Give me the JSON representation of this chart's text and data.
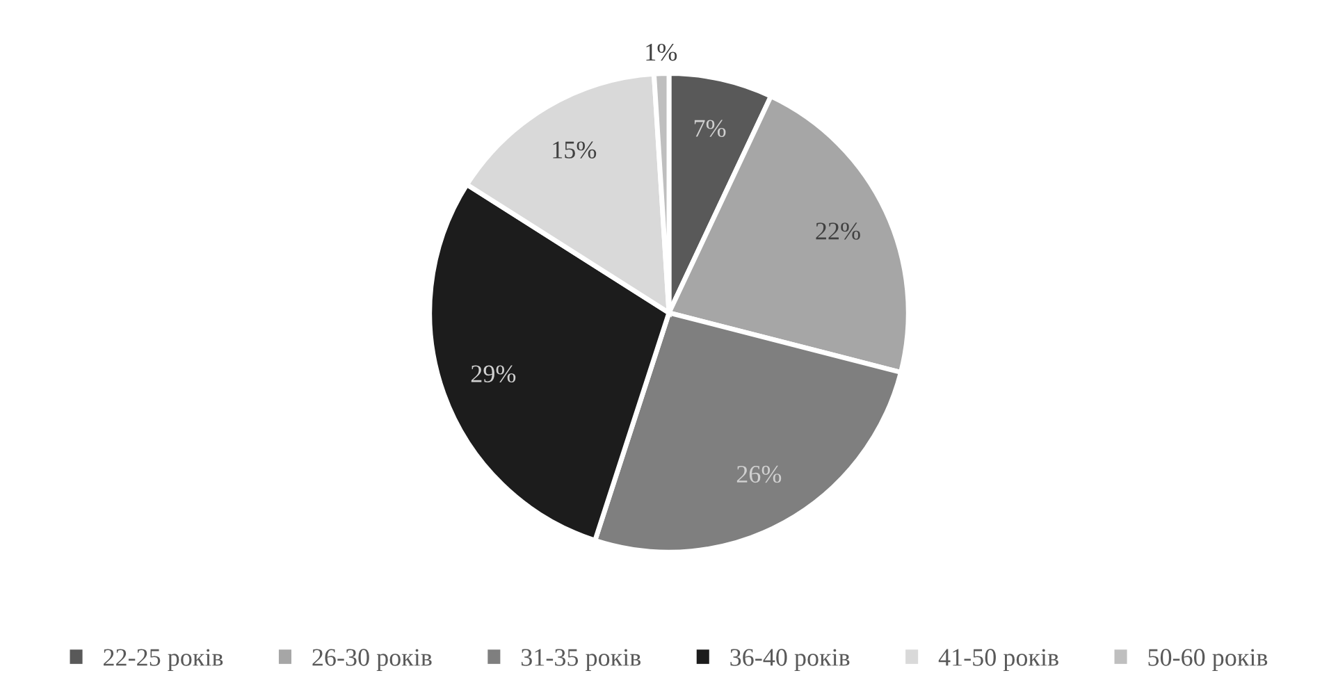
{
  "chart_data": {
    "type": "pie",
    "categories": [
      "22-25 років",
      "26-30 років",
      "31-35 років",
      "36-40 років",
      "41-50 років",
      "50-60 років"
    ],
    "values": [
      7,
      22,
      26,
      29,
      15,
      1
    ],
    "colors": [
      "#595959",
      "#a6a6a6",
      "#7f7f7f",
      "#1c1c1c",
      "#d9d9d9",
      "#bfbfbf"
    ],
    "value_labels": [
      "7%",
      "22%",
      "26%",
      "29%",
      "15%",
      "1%"
    ],
    "legend": "bottom"
  }
}
